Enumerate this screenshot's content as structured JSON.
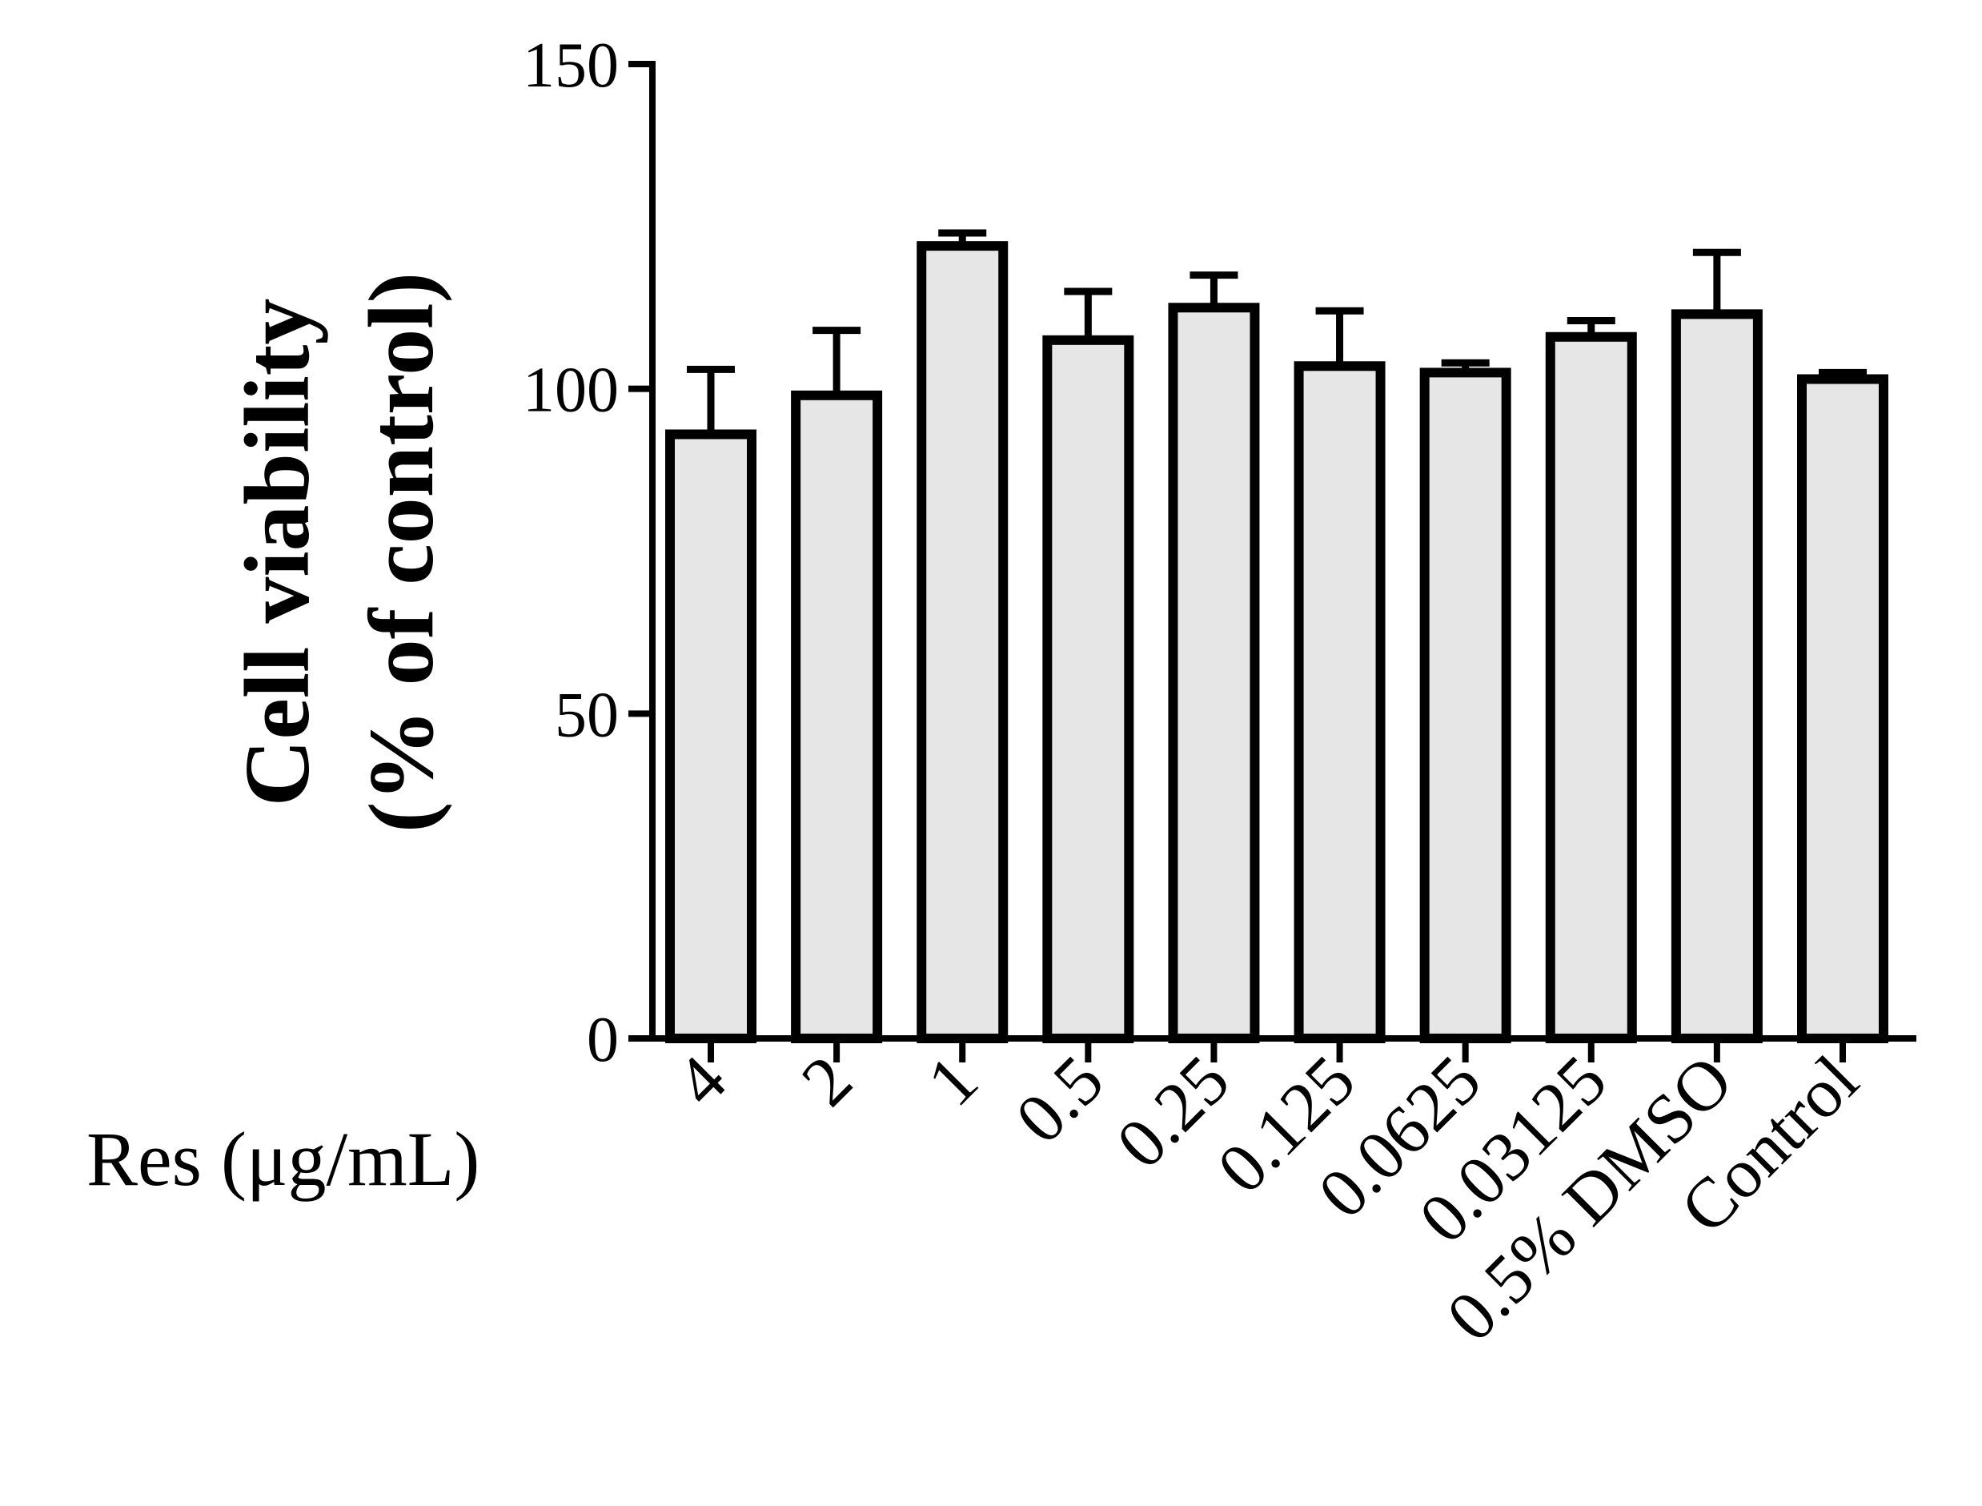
{
  "chart_data": {
    "type": "bar",
    "title": "",
    "xlabel": "Res (μg/mL)",
    "ylabel_line1": "Cell viability",
    "ylabel_line2": "(% of control)",
    "categories": [
      "4",
      "2",
      "1",
      "0.5",
      "0.25",
      "0.125",
      "0.0625",
      "0.03125",
      "0.5% DMSO",
      "Control"
    ],
    "values": [
      93,
      99,
      122,
      107.5,
      112.5,
      103.5,
      102.5,
      108,
      111.5,
      101.5
    ],
    "errors": [
      10,
      10,
      2,
      7.5,
      5,
      8.5,
      1.5,
      2.5,
      9.5,
      1
    ],
    "ylim": [
      0,
      150
    ],
    "yticks": [
      0,
      50,
      100,
      150
    ],
    "ytick_labels": [
      "0",
      "50",
      "100",
      "150"
    ],
    "grid": false,
    "bar_color": "#e6e6e6",
    "edge_color": "#000000"
  }
}
